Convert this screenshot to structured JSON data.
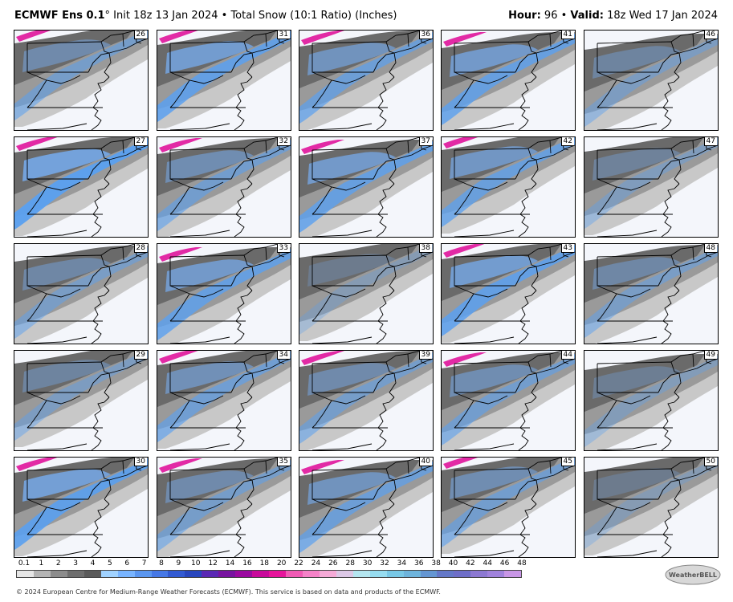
{
  "header": {
    "model": "ECMWF Ens 0.1",
    "degree": "°",
    "title_rest": " Init 18z 13 Jan 2024 • Total Snow (10:1 Ratio) (Inches)",
    "hour_label": "Hour:",
    "hour_value": " 96 • ",
    "valid_label": "Valid:",
    "valid_value": " 18z Wed 17 Jan 2024"
  },
  "members": [
    "26",
    "31",
    "36",
    "41",
    "46",
    "27",
    "32",
    "37",
    "42",
    "47",
    "28",
    "33",
    "38",
    "43",
    "48",
    "29",
    "34",
    "39",
    "44",
    "49",
    "30",
    "35",
    "40",
    "45",
    "50"
  ],
  "member_intensity": [
    0.55,
    0.85,
    0.7,
    0.8,
    0.45,
    0.95,
    0.6,
    0.8,
    0.75,
    0.4,
    0.5,
    0.8,
    0.3,
    0.85,
    0.5,
    0.45,
    0.65,
    0.55,
    0.6,
    0.35,
    0.9,
    0.55,
    0.7,
    0.6,
    0.3
  ],
  "colorbar": {
    "labels": [
      "0.1",
      "1",
      "2",
      "3",
      "4",
      "5",
      "6",
      "7",
      "8",
      "9",
      "10",
      "12",
      "14",
      "16",
      "18",
      "20",
      "22",
      "24",
      "26",
      "28",
      "30",
      "32",
      "34",
      "36",
      "38",
      "40",
      "42",
      "44",
      "46",
      "48"
    ],
    "colors": [
      "#e6e6e6",
      "#b4b4b4",
      "#8c8c8c",
      "#6e6e6e",
      "#5a5a5a",
      "#a0d2ff",
      "#78b4ff",
      "#5a96f0",
      "#4678e6",
      "#325ad2",
      "#2846be",
      "#5a28b4",
      "#7814a0",
      "#9b0aa0",
      "#c80a9b",
      "#e6149b",
      "#f05ab4",
      "#f582c8",
      "#f5aad7",
      "#dcc8e6",
      "#b4e6f0",
      "#96dcf0",
      "#78c8e6",
      "#6eb4dc",
      "#6496d2",
      "#6478c8",
      "#6e6ec8",
      "#8c78d2",
      "#a082dc",
      "#c896e6"
    ]
  },
  "footer": "© 2024 European Centre for Medium-Range Weather Forecasts (ECMWF). This service is based on data and products of the ECMWF.",
  "logo_text": "WeatherBELL"
}
